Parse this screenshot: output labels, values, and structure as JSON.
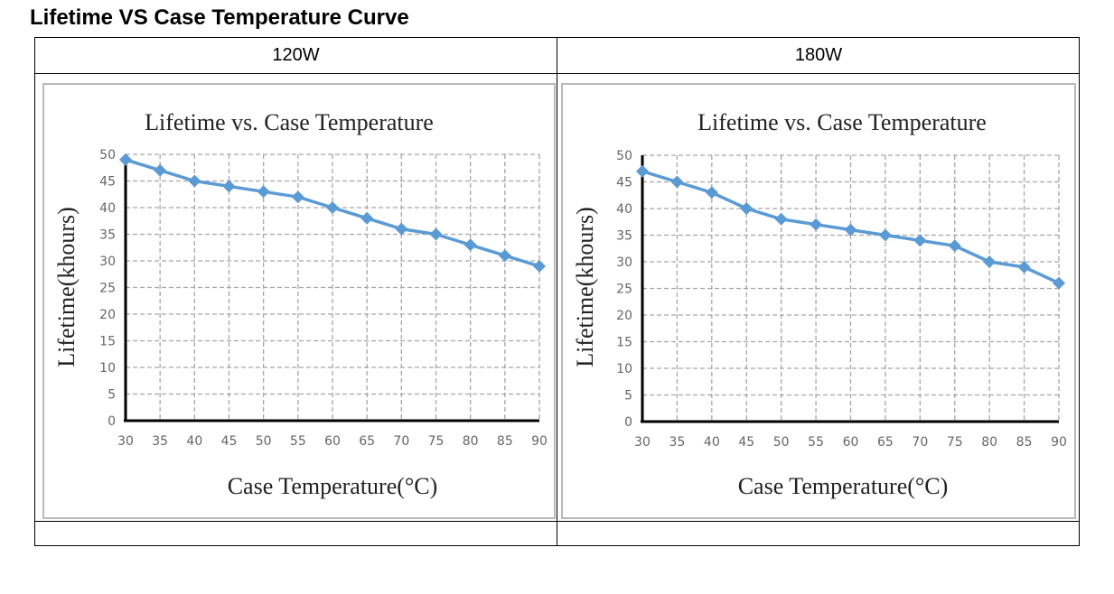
{
  "page": {
    "heading": "Lifetime VS Case Temperature Curve"
  },
  "table": {
    "columns": [
      "120W",
      "180W"
    ]
  },
  "colors": {
    "series": "#5b9bd5",
    "grid": "#a6a6a6",
    "axis": "#000000",
    "frame": "#b9b9b9"
  },
  "chart_data": [
    {
      "type": "line",
      "title": "Lifetime vs. Case Temperature",
      "xlabel": "Case Temperature(°C)",
      "ylabel": "Lifetime(khours)",
      "x": [
        30,
        35,
        40,
        45,
        50,
        55,
        60,
        65,
        70,
        75,
        80,
        85,
        90
      ],
      "series": [
        {
          "values": [
            49,
            47,
            45,
            44,
            43,
            42,
            40,
            38,
            36,
            35,
            33,
            31,
            29
          ]
        }
      ],
      "xlim": [
        30,
        90
      ],
      "ylim": [
        0,
        50
      ],
      "yticks": [
        0,
        5,
        10,
        15,
        20,
        25,
        30,
        35,
        40,
        45,
        50
      ],
      "grid": true,
      "legend": "none"
    },
    {
      "type": "line",
      "title": "Lifetime vs. Case Temperature",
      "xlabel": "Case Temperature(°C)",
      "ylabel": "Lifetime(khours)",
      "x": [
        30,
        35,
        40,
        45,
        50,
        55,
        60,
        65,
        70,
        75,
        80,
        85,
        90
      ],
      "series": [
        {
          "values": [
            47,
            45,
            43,
            40,
            38,
            37,
            36,
            35,
            34,
            33,
            30,
            29,
            26
          ]
        }
      ],
      "xlim": [
        30,
        90
      ],
      "ylim": [
        0,
        50
      ],
      "yticks": [
        0,
        5,
        10,
        15,
        20,
        25,
        30,
        35,
        40,
        45,
        50
      ],
      "grid": true,
      "legend": "none"
    }
  ]
}
